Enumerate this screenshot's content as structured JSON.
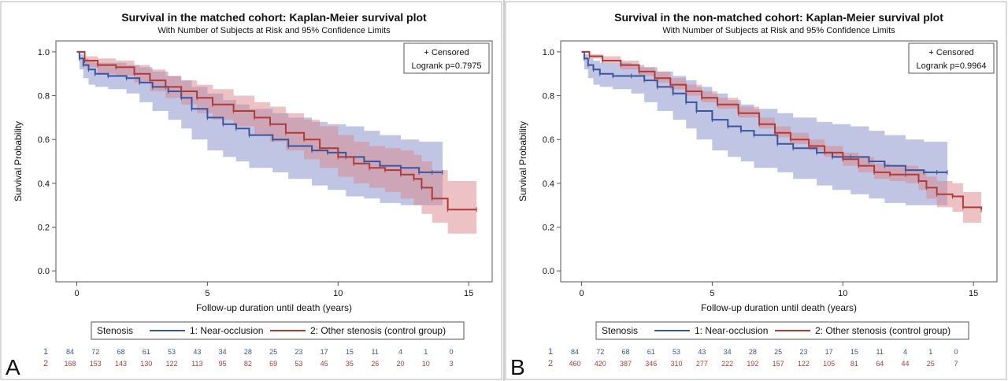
{
  "chart_data": [
    {
      "panel_label": "A",
      "type": "line",
      "title": "Survival in the matched cohort: Kaplan-Meier survival plot",
      "subtitle": "With Number of Subjects at Risk and 95% Confidence Limits",
      "xlabel": "Follow-up duration until death (years)",
      "ylabel": "Survival Probability",
      "xlim": [
        -0.8,
        15.9
      ],
      "ylim": [
        -0.05,
        1.05
      ],
      "x_ticks": [
        0,
        5,
        10,
        15
      ],
      "y_ticks": [
        "0.0",
        "0.2",
        "0.4",
        "0.6",
        "0.8",
        "1.0"
      ],
      "inset": {
        "line1": "+ Censored",
        "line2": "Logrank p=0.7975"
      },
      "legend": {
        "title": "Stenosis",
        "placement": "bottom"
      },
      "series": [
        {
          "name": "1: Near-occlusion",
          "color": "#3a55a0",
          "band_color": "#7f8cc6",
          "x": [
            0,
            0.1,
            0.25,
            0.45,
            0.7,
            1.2,
            1.9,
            2.4,
            2.9,
            3.5,
            4.0,
            4.4,
            5.0,
            5.6,
            6.1,
            6.6,
            7.5,
            8.1,
            9.0,
            9.6,
            10.3,
            11.0,
            11.6,
            12.4,
            13.1,
            13.6,
            14.0
          ],
          "y": [
            1.0,
            0.97,
            0.94,
            0.92,
            0.9,
            0.89,
            0.88,
            0.86,
            0.84,
            0.82,
            0.79,
            0.74,
            0.7,
            0.67,
            0.65,
            0.62,
            0.6,
            0.57,
            0.55,
            0.54,
            0.52,
            0.5,
            0.48,
            0.47,
            0.45,
            0.45,
            0.45
          ],
          "lower": [
            1.0,
            0.92,
            0.88,
            0.85,
            0.84,
            0.83,
            0.81,
            0.77,
            0.73,
            0.69,
            0.65,
            0.6,
            0.55,
            0.52,
            0.5,
            0.47,
            0.45,
            0.42,
            0.39,
            0.37,
            0.34,
            0.33,
            0.31,
            0.3,
            0.3,
            0.3,
            0.3
          ],
          "upper": [
            1.0,
            0.99,
            0.97,
            0.96,
            0.95,
            0.95,
            0.94,
            0.93,
            0.91,
            0.89,
            0.87,
            0.84,
            0.81,
            0.78,
            0.76,
            0.74,
            0.72,
            0.7,
            0.68,
            0.67,
            0.66,
            0.64,
            0.62,
            0.6,
            0.59,
            0.59,
            0.59
          ]
        },
        {
          "name": "2: Other stenosis (control group)",
          "color": "#b23a35",
          "band_color": "#d9868a",
          "x": [
            0,
            0.3,
            0.8,
            1.5,
            2.2,
            2.8,
            3.4,
            4.0,
            4.6,
            5.2,
            6.0,
            6.8,
            7.4,
            8.0,
            8.7,
            9.3,
            10.0,
            10.6,
            11.2,
            11.8,
            12.4,
            12.9,
            13.2,
            13.6,
            14.2,
            15.3
          ],
          "y": [
            1.0,
            0.96,
            0.94,
            0.93,
            0.9,
            0.87,
            0.84,
            0.82,
            0.79,
            0.76,
            0.73,
            0.7,
            0.67,
            0.63,
            0.6,
            0.56,
            0.52,
            0.49,
            0.47,
            0.46,
            0.44,
            0.42,
            0.38,
            0.33,
            0.28,
            0.28
          ],
          "lower": [
            1.0,
            0.93,
            0.9,
            0.89,
            0.86,
            0.82,
            0.79,
            0.76,
            0.72,
            0.69,
            0.66,
            0.62,
            0.59,
            0.55,
            0.51,
            0.47,
            0.43,
            0.4,
            0.38,
            0.36,
            0.33,
            0.3,
            0.26,
            0.22,
            0.17,
            0.17
          ],
          "upper": [
            1.0,
            0.98,
            0.97,
            0.96,
            0.94,
            0.92,
            0.89,
            0.87,
            0.85,
            0.83,
            0.8,
            0.77,
            0.75,
            0.72,
            0.69,
            0.66,
            0.62,
            0.59,
            0.57,
            0.56,
            0.55,
            0.53,
            0.5,
            0.46,
            0.41,
            0.41
          ]
        }
      ],
      "at_risk": [
        {
          "group": "1",
          "color": "#3a55a0",
          "values": [
            "84",
            "72",
            "68",
            "61",
            "53",
            "43",
            "34",
            "28",
            "25",
            "23",
            "17",
            "15",
            "11",
            "4",
            "1",
            "0"
          ]
        },
        {
          "group": "2",
          "color": "#b23a35",
          "values": [
            "168",
            "153",
            "143",
            "130",
            "122",
            "113",
            "95",
            "82",
            "69",
            "53",
            "45",
            "35",
            "26",
            "20",
            "10",
            "3"
          ]
        }
      ]
    },
    {
      "panel_label": "B",
      "type": "line",
      "title": "Survival in the non-matched cohort: Kaplan-Meier survival plot",
      "subtitle": "With Number of Subjects at Risk and 95% Confidence Limits",
      "xlabel": "Follow-up duration until death (years)",
      "ylabel": "Survival Probability",
      "xlim": [
        -0.8,
        15.9
      ],
      "ylim": [
        -0.05,
        1.05
      ],
      "x_ticks": [
        0,
        5,
        10,
        15
      ],
      "y_ticks": [
        "0.0",
        "0.2",
        "0.4",
        "0.6",
        "0.8",
        "1.0"
      ],
      "inset": {
        "line1": "+ Censored",
        "line2": "Logrank p=0.9964"
      },
      "legend": {
        "title": "Stenosis",
        "placement": "bottom"
      },
      "series": [
        {
          "name": "1: Near-occlusion",
          "color": "#3a55a0",
          "band_color": "#7f8cc6",
          "x": [
            0,
            0.1,
            0.25,
            0.45,
            0.7,
            1.2,
            1.9,
            2.4,
            2.9,
            3.5,
            4.0,
            4.4,
            5.0,
            5.6,
            6.1,
            6.6,
            7.5,
            8.1,
            9.0,
            9.6,
            10.3,
            11.0,
            11.6,
            12.4,
            13.1,
            13.6,
            14.0
          ],
          "y": [
            1.0,
            0.97,
            0.94,
            0.92,
            0.9,
            0.89,
            0.89,
            0.87,
            0.84,
            0.81,
            0.77,
            0.73,
            0.69,
            0.66,
            0.64,
            0.62,
            0.58,
            0.56,
            0.54,
            0.52,
            0.52,
            0.5,
            0.48,
            0.46,
            0.45,
            0.45,
            0.45
          ],
          "lower": [
            1.0,
            0.92,
            0.88,
            0.85,
            0.84,
            0.83,
            0.81,
            0.77,
            0.73,
            0.69,
            0.65,
            0.6,
            0.55,
            0.52,
            0.5,
            0.47,
            0.45,
            0.42,
            0.39,
            0.37,
            0.35,
            0.33,
            0.31,
            0.3,
            0.3,
            0.3,
            0.3
          ],
          "upper": [
            1.0,
            0.99,
            0.97,
            0.96,
            0.95,
            0.95,
            0.94,
            0.93,
            0.91,
            0.89,
            0.87,
            0.84,
            0.81,
            0.78,
            0.76,
            0.74,
            0.72,
            0.7,
            0.68,
            0.67,
            0.66,
            0.64,
            0.62,
            0.6,
            0.59,
            0.59,
            0.59
          ]
        },
        {
          "name": "2: Other stenosis (control group)",
          "color": "#b23a35",
          "band_color": "#d9868a",
          "x": [
            0,
            0.3,
            0.8,
            1.5,
            2.2,
            2.8,
            3.4,
            4.0,
            4.6,
            5.2,
            6.0,
            6.8,
            7.4,
            8.0,
            8.7,
            9.3,
            10.0,
            10.6,
            11.2,
            11.8,
            12.4,
            12.9,
            13.2,
            13.6,
            14.2,
            14.6,
            15.3
          ],
          "y": [
            1.0,
            0.98,
            0.96,
            0.94,
            0.91,
            0.88,
            0.85,
            0.82,
            0.79,
            0.76,
            0.72,
            0.67,
            0.63,
            0.6,
            0.57,
            0.54,
            0.51,
            0.48,
            0.45,
            0.44,
            0.44,
            0.41,
            0.38,
            0.35,
            0.34,
            0.29,
            0.28
          ],
          "lower": [
            1.0,
            0.97,
            0.95,
            0.92,
            0.89,
            0.86,
            0.83,
            0.8,
            0.77,
            0.74,
            0.7,
            0.65,
            0.61,
            0.58,
            0.55,
            0.52,
            0.48,
            0.45,
            0.42,
            0.41,
            0.4,
            0.37,
            0.33,
            0.29,
            0.27,
            0.22,
            0.21
          ],
          "upper": [
            1.0,
            0.99,
            0.98,
            0.96,
            0.93,
            0.91,
            0.88,
            0.85,
            0.82,
            0.79,
            0.75,
            0.7,
            0.66,
            0.63,
            0.6,
            0.57,
            0.54,
            0.52,
            0.49,
            0.48,
            0.48,
            0.46,
            0.43,
            0.41,
            0.4,
            0.36,
            0.36
          ]
        }
      ],
      "at_risk": [
        {
          "group": "1",
          "color": "#3a55a0",
          "values": [
            "84",
            "72",
            "68",
            "61",
            "53",
            "43",
            "34",
            "28",
            "25",
            "23",
            "17",
            "15",
            "11",
            "4",
            "1",
            "0"
          ]
        },
        {
          "group": "2",
          "color": "#b23a35",
          "values": [
            "460",
            "420",
            "387",
            "346",
            "310",
            "277",
            "222",
            "192",
            "157",
            "122",
            "105",
            "81",
            "64",
            "44",
            "25",
            "7"
          ]
        }
      ]
    }
  ]
}
